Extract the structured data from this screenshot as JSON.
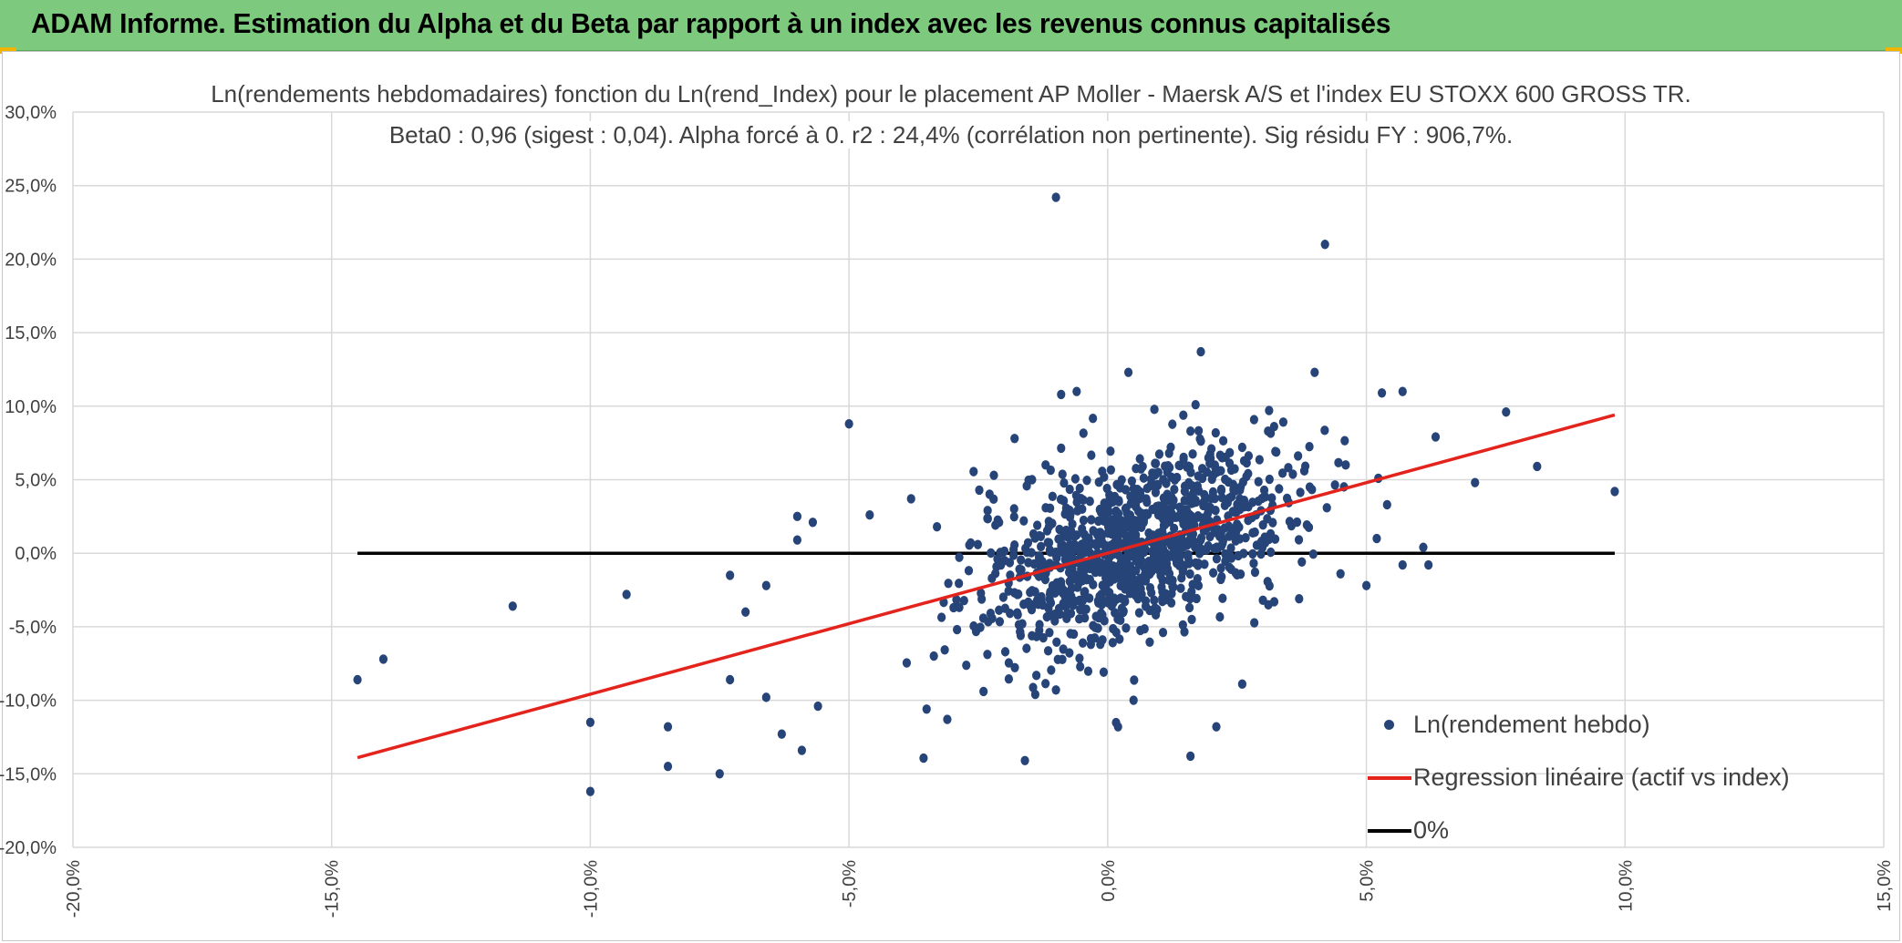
{
  "banner": {
    "title": "ADAM Informe. Estimation du Alpha et du Beta par rapport à un index avec les revenus connus capitalisés"
  },
  "colors": {
    "banner": "#7dc97d",
    "accent_corner": "#f2b400",
    "scatter": "#264478",
    "regression": "#e3231c",
    "zero_line": "#000000",
    "grid": "#d9d9d9",
    "text": "#404040"
  },
  "chart_data": {
    "type": "scatter",
    "title": "Ln(rendements hebdomadaires) fonction du Ln(rend_Index) pour le placement AP Moller - Maersk A/S et l'index EU STOXX 600 GROSS TR.",
    "subtitle": "Beta0 : 0,96 (sigest : 0,04). Alpha forcé à 0. r2 : 24,4% (corrélation non pertinente). Sig résidu FY : 906,7%.",
    "xlim": [
      -20,
      15
    ],
    "ylim": [
      -20,
      30
    ],
    "x_ticks": [
      "-20,0%",
      "-15,0%",
      "-10,0%",
      "-5,0%",
      "0,0%",
      "5,0%",
      "10,0%",
      "15,0%"
    ],
    "y_ticks": [
      "30,0%",
      "25,0%",
      "20,0%",
      "15,0%",
      "10,0%",
      "5,0%",
      "0,0%",
      "-5,0%",
      "-10,0%",
      "-15,0%",
      "-20,0%"
    ],
    "grid": true,
    "legend_position": "bottom-right",
    "series": [
      {
        "name": "Ln(rendement hebdo)",
        "kind": "scatter",
        "cloud": {
          "center_x": 0.5,
          "center_y": 0.5,
          "sd_x": 1.5,
          "sd_y": 3.3,
          "correlation": 0.49,
          "count": 1100,
          "seed": 7
        },
        "points": [
          [
            -14.5,
            -8.6
          ],
          [
            -14.0,
            -7.2
          ],
          [
            -11.5,
            -3.6
          ],
          [
            -10.0,
            -16.2
          ],
          [
            -10.0,
            -11.5
          ],
          [
            -9.3,
            -2.8
          ],
          [
            -8.5,
            -11.8
          ],
          [
            -8.5,
            -14.5
          ],
          [
            -7.5,
            -15.0
          ],
          [
            -7.3,
            -8.6
          ],
          [
            -7.3,
            -1.5
          ],
          [
            -7.0,
            -4.0
          ],
          [
            -6.6,
            -9.8
          ],
          [
            -6.6,
            -2.2
          ],
          [
            -6.3,
            -12.3
          ],
          [
            -6.0,
            2.5
          ],
          [
            -6.0,
            0.9
          ],
          [
            -5.7,
            2.1
          ],
          [
            -5.6,
            -10.4
          ],
          [
            -5.0,
            8.8
          ],
          [
            -4.6,
            2.6
          ],
          [
            -1.0,
            24.2
          ],
          [
            4.2,
            21.0
          ],
          [
            4.0,
            12.3
          ],
          [
            1.8,
            13.7
          ],
          [
            0.4,
            12.3
          ],
          [
            5.3,
            10.9
          ],
          [
            5.7,
            11.0
          ],
          [
            7.7,
            9.6
          ],
          [
            8.3,
            5.9
          ],
          [
            7.1,
            4.8
          ],
          [
            9.8,
            4.2
          ],
          [
            6.2,
            -0.8
          ],
          [
            6.1,
            0.4
          ],
          [
            5.7,
            -0.8
          ],
          [
            5.4,
            3.3
          ],
          [
            5.0,
            -2.2
          ],
          [
            4.6,
            6.0
          ],
          [
            5.2,
            1.0
          ],
          [
            4.5,
            -1.4
          ],
          [
            -1.6,
            -14.1
          ],
          [
            1.6,
            -13.8
          ],
          [
            2.1,
            -11.8
          ],
          [
            0.2,
            -11.8
          ],
          [
            0.5,
            -10.0
          ],
          [
            -3.1,
            -11.3
          ],
          [
            -3.5,
            -10.6
          ],
          [
            -2.4,
            -9.4
          ],
          [
            -1.4,
            -9.6
          ],
          [
            -1.0,
            -9.3
          ],
          [
            2.6,
            -8.9
          ],
          [
            3.8,
            5.6
          ],
          [
            3.1,
            8.3
          ],
          [
            2.6,
            7.2
          ],
          [
            -0.9,
            10.8
          ],
          [
            -0.6,
            11.0
          ],
          [
            1.6,
            8.3
          ],
          [
            -1.2,
            6.0
          ],
          [
            -1.8,
            7.8
          ],
          [
            -3.8,
            3.7
          ],
          [
            -3.3,
            1.8
          ],
          [
            -2.2,
            5.3
          ],
          [
            3.0,
            -3.2
          ],
          [
            3.7,
            -3.1
          ],
          [
            2.2,
            0.5
          ]
        ]
      },
      {
        "name": "Regression linéaire (actif vs index)",
        "kind": "line",
        "x": [
          -14.5,
          9.8
        ],
        "y": [
          -13.9,
          9.4
        ]
      },
      {
        "name": "0%",
        "kind": "line",
        "x": [
          -14.5,
          9.8
        ],
        "y": [
          0,
          0
        ]
      }
    ]
  }
}
